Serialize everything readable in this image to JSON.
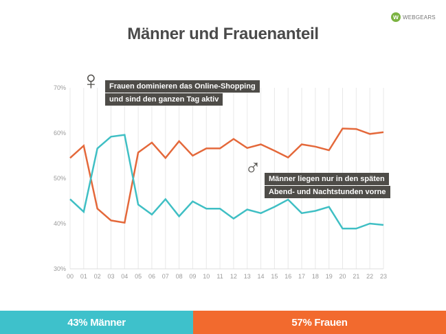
{
  "brand": {
    "mark": "w",
    "name": "WEBGEARS",
    "color": "#7cb342"
  },
  "title": "Männer und Frauenanteil",
  "annotations": {
    "female": {
      "symbol": "♀",
      "lines": [
        "Frauen dominieren das Online-Shopping",
        "und sind den ganzen Tag aktiv"
      ]
    },
    "male": {
      "symbol": "♂",
      "lines": [
        "Männer liegen nur in den späten",
        "Abend- und Nachtstunden vorne"
      ]
    }
  },
  "summary": {
    "men": {
      "label": "43% Männer",
      "share": 43,
      "color": "#3ec1cb"
    },
    "women": {
      "label": "57% Frauen",
      "share": 57,
      "color": "#f26a2e"
    }
  },
  "chart_data": {
    "type": "line",
    "title": "Männer und Frauenanteil",
    "xlabel": "",
    "ylabel": "",
    "x": [
      "00",
      "01",
      "02",
      "03",
      "04",
      "05",
      "06",
      "07",
      "08",
      "09",
      "10",
      "11",
      "12",
      "13",
      "14",
      "15",
      "16",
      "17",
      "18",
      "19",
      "20",
      "21",
      "22",
      "23"
    ],
    "ylim": [
      30,
      70
    ],
    "yticks": [
      30,
      40,
      50,
      60,
      70
    ],
    "ytick_labels": [
      "30%",
      "40%",
      "50%",
      "60%",
      "70%"
    ],
    "grid": "vertical",
    "legend": "none",
    "series": [
      {
        "name": "Frauen",
        "color": "#e4683a",
        "values": [
          54.5,
          57.2,
          43.3,
          40.7,
          40.2,
          55.7,
          57.9,
          54.5,
          58.2,
          55.0,
          56.6,
          56.6,
          58.7,
          56.7,
          57.5,
          56.1,
          54.6,
          57.5,
          57.0,
          56.2,
          61.0,
          60.9,
          59.8,
          60.2
        ]
      },
      {
        "name": "Männer",
        "color": "#3fbfc4",
        "values": [
          45.4,
          42.6,
          56.6,
          59.2,
          59.6,
          44.2,
          42.0,
          45.4,
          41.6,
          44.9,
          43.3,
          43.3,
          41.1,
          43.1,
          42.3,
          43.7,
          45.3,
          42.3,
          42.8,
          43.7,
          38.9,
          38.9,
          40.0,
          39.7
        ]
      }
    ]
  }
}
